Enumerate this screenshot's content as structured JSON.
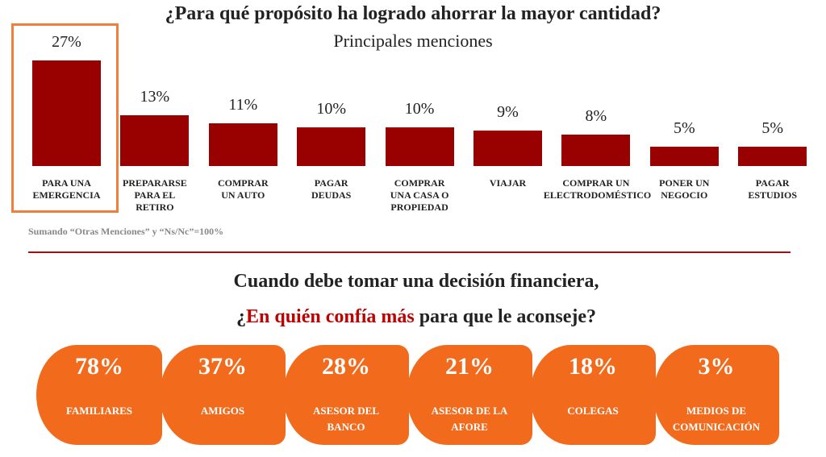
{
  "chart_data": {
    "type": "bar",
    "title": "¿Para qué propósito ha logrado ahorrar la mayor cantidad?",
    "subtitle": "Principales menciones",
    "categories": [
      "PARA UNA\nEMERGENCIA",
      "PREPARARSE\nPARA EL\nRETIRO",
      "COMPRAR\nUN AUTO",
      "PAGAR\nDEUDAS",
      "COMPRAR\nUNA CASA O\nPROPIEDAD",
      "VIAJAR",
      "COMPRAR UN\nELECTRODOMÉSTICO",
      "PONER UN\nNEGOCIO",
      "PAGAR\nESTUDIOS"
    ],
    "values": [
      27,
      13,
      11,
      10,
      10,
      9,
      8,
      5,
      5
    ],
    "value_labels": [
      "27%",
      "13%",
      "11%",
      "10%",
      "10%",
      "9%",
      "8%",
      "5%",
      "5%"
    ],
    "color": "#990000",
    "note": "Sumando “Otras Menciones” y “Ns/Nc”=100%"
  },
  "advice": {
    "heading": "Cuando debe tomar una decisión financiera,",
    "question": [
      "¿",
      "En quién confía más",
      " para que le aconseje?"
    ],
    "tile_color": "#f26b1d",
    "tiles": [
      {
        "value": "78%",
        "label": "FAMILIARES"
      },
      {
        "value": "37%",
        "label": "AMIGOS"
      },
      {
        "value": "28%",
        "label": "ASESOR DEL\nBANCO"
      },
      {
        "value": "21%",
        "label": "ASESOR DE  LA\nAFORE"
      },
      {
        "value": "18%",
        "label": "COLEGAS"
      },
      {
        "value": "3%",
        "label": "MEDIOS DE\nCOMUNICACIÓN"
      }
    ]
  }
}
